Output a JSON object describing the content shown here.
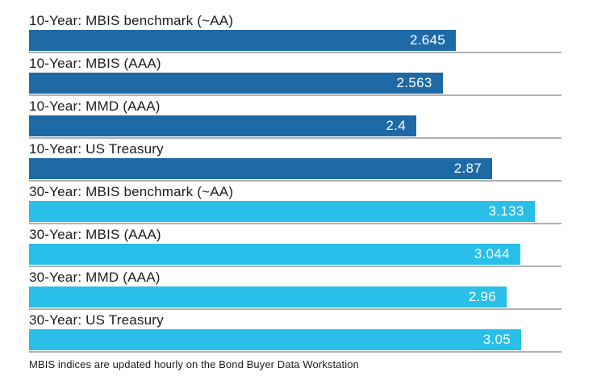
{
  "chart_data": {
    "type": "bar",
    "orientation": "horizontal",
    "xlim": [
      0,
      3.3
    ],
    "grid": false,
    "legend": "none",
    "categories": [
      "10-Year: MBIS benchmark (~AA)",
      "10-Year: MBIS (AAA)",
      "10-Year: MMD (AAA)",
      "10-Year: US Treasury",
      "30-Year: MBIS benchmark (~AA)",
      "30-Year: MBIS (AAA)",
      "30-Year: MMD (AAA)",
      "30-Year: US Treasury"
    ],
    "values": [
      2.645,
      2.563,
      2.4,
      2.87,
      3.133,
      3.044,
      2.96,
      3.05
    ],
    "bars": [
      {
        "label": "10-Year: MBIS benchmark (~AA)",
        "value": 2.645,
        "display": "2.645",
        "group": "10-year"
      },
      {
        "label": "10-Year: MBIS (AAA)",
        "value": 2.563,
        "display": "2.563",
        "group": "10-year"
      },
      {
        "label": "10-Year: MMD (AAA)",
        "value": 2.4,
        "display": "2.4",
        "group": "10-year"
      },
      {
        "label": "10-Year: US Treasury",
        "value": 2.87,
        "display": "2.87",
        "group": "10-year"
      },
      {
        "label": "30-Year: MBIS benchmark (~AA)",
        "value": 3.133,
        "display": "3.133",
        "group": "30-year"
      },
      {
        "label": "30-Year: MBIS (AAA)",
        "value": 3.044,
        "display": "3.044",
        "group": "30-year"
      },
      {
        "label": "30-Year: MMD (AAA)",
        "value": 2.96,
        "display": "2.96",
        "group": "30-year"
      },
      {
        "label": "30-Year: US Treasury",
        "value": 3.05,
        "display": "3.05",
        "group": "30-year"
      }
    ],
    "group_colors": {
      "10-year": "#1e6aa6",
      "30-year": "#29bfe8"
    },
    "value_label_color": "#ffffff",
    "separator_color": "#b0b0b0",
    "footnote": "MBIS indices are updated hourly on the Bond Buyer Data Workstation"
  }
}
